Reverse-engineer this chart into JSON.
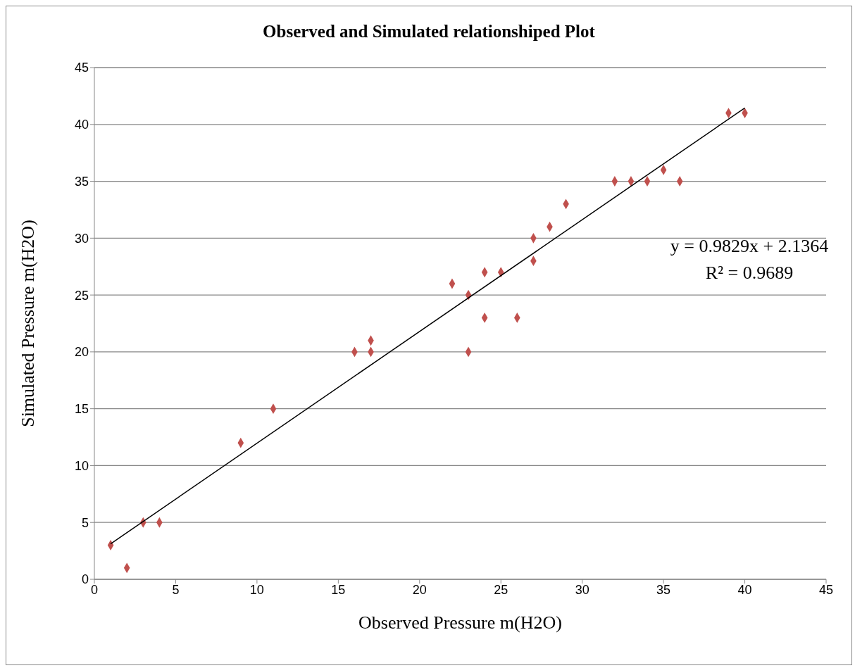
{
  "chart_data": {
    "type": "scatter",
    "title": "Observed and Simulated relationshiped Plot",
    "xlabel": "Observed Pressure m(H2O)",
    "ylabel": "Simulated Pressure m(H2O)",
    "x": [
      1,
      2,
      3,
      4,
      9,
      11,
      16,
      17,
      17,
      22,
      23,
      23,
      24,
      24,
      25,
      26,
      27,
      27,
      28,
      29,
      32,
      33,
      34,
      35,
      36,
      39,
      40
    ],
    "series": [
      {
        "type": "scatter",
        "color": "#c0504d",
        "marker": "diamond",
        "values": [
          3,
          1,
          5,
          5,
          12,
          15,
          20,
          21,
          20,
          26,
          25,
          20,
          27,
          23,
          27,
          23,
          30,
          28,
          31,
          33,
          35,
          35,
          35,
          36,
          35,
          41,
          41
        ]
      },
      {
        "type": "line",
        "color": "#000000",
        "marker": "none",
        "x": [
          1,
          40
        ],
        "values": [
          3.12,
          41.45
        ]
      }
    ],
    "xlim": [
      0,
      45
    ],
    "xticks": [
      0,
      5,
      10,
      15,
      20,
      25,
      30,
      35,
      40,
      45
    ],
    "ylim": [
      0,
      45
    ],
    "yticks": [
      0,
      5,
      10,
      15,
      20,
      25,
      30,
      35,
      40,
      45
    ],
    "grid": "y",
    "annotations": [
      "y = 0.9829x + 2.1364",
      "R² = 0.9689"
    ]
  }
}
